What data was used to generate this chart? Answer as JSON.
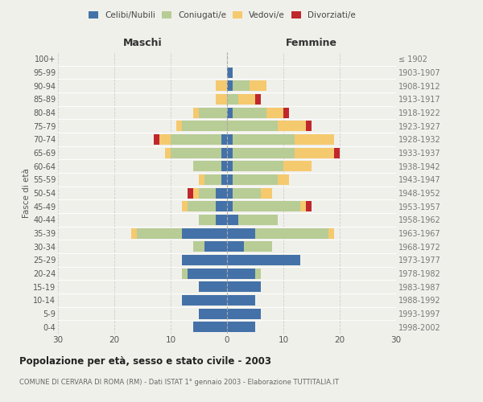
{
  "age_groups": [
    "0-4",
    "5-9",
    "10-14",
    "15-19",
    "20-24",
    "25-29",
    "30-34",
    "35-39",
    "40-44",
    "45-49",
    "50-54",
    "55-59",
    "60-64",
    "65-69",
    "70-74",
    "75-79",
    "80-84",
    "85-89",
    "90-94",
    "95-99",
    "100+"
  ],
  "birth_years": [
    "1998-2002",
    "1993-1997",
    "1988-1992",
    "1983-1987",
    "1978-1982",
    "1973-1977",
    "1968-1972",
    "1963-1967",
    "1958-1962",
    "1953-1957",
    "1948-1952",
    "1943-1947",
    "1938-1942",
    "1933-1937",
    "1928-1932",
    "1923-1927",
    "1918-1922",
    "1913-1917",
    "1908-1912",
    "1903-1907",
    "≤ 1902"
  ],
  "males": {
    "celibi": [
      6,
      5,
      8,
      5,
      7,
      8,
      4,
      8,
      2,
      2,
      2,
      1,
      1,
      1,
      1,
      0,
      0,
      0,
      0,
      0,
      0
    ],
    "coniugati": [
      0,
      0,
      0,
      0,
      1,
      0,
      2,
      8,
      3,
      5,
      3,
      3,
      5,
      9,
      9,
      8,
      5,
      0,
      0,
      0,
      0
    ],
    "vedovi": [
      0,
      0,
      0,
      0,
      0,
      0,
      0,
      1,
      0,
      1,
      1,
      1,
      0,
      1,
      2,
      1,
      1,
      2,
      2,
      0,
      0
    ],
    "divorziati": [
      0,
      0,
      0,
      0,
      0,
      0,
      0,
      0,
      0,
      0,
      1,
      0,
      0,
      0,
      1,
      0,
      0,
      0,
      0,
      0,
      0
    ]
  },
  "females": {
    "nubili": [
      5,
      6,
      5,
      6,
      5,
      13,
      3,
      5,
      2,
      1,
      1,
      1,
      1,
      1,
      1,
      0,
      1,
      0,
      1,
      1,
      0
    ],
    "coniugate": [
      0,
      0,
      0,
      0,
      1,
      0,
      5,
      13,
      7,
      12,
      5,
      8,
      9,
      11,
      11,
      9,
      6,
      2,
      3,
      0,
      0
    ],
    "vedove": [
      0,
      0,
      0,
      0,
      0,
      0,
      0,
      1,
      0,
      1,
      2,
      2,
      5,
      7,
      7,
      5,
      3,
      3,
      3,
      0,
      0
    ],
    "divorziate": [
      0,
      0,
      0,
      0,
      0,
      0,
      0,
      0,
      0,
      1,
      0,
      0,
      0,
      1,
      0,
      1,
      1,
      1,
      0,
      0,
      0
    ]
  },
  "colors": {
    "celibi": "#4472a8",
    "coniugati": "#b8cc96",
    "vedovi": "#f5c96e",
    "divorziati": "#c0272d"
  },
  "title": "Popolazione per età, sesso e stato civile - 2003",
  "subtitle": "COMUNE DI CERVARA DI ROMA (RM) - Dati ISTAT 1° gennaio 2003 - Elaborazione TUTTITALIA.IT",
  "ylabel_left": "Fasce di età",
  "xlabel_left": "Maschi",
  "xlabel_right": "Femmine",
  "xlim": 30,
  "bg_color": "#f0f0eb",
  "grid_color": "#cccccc"
}
